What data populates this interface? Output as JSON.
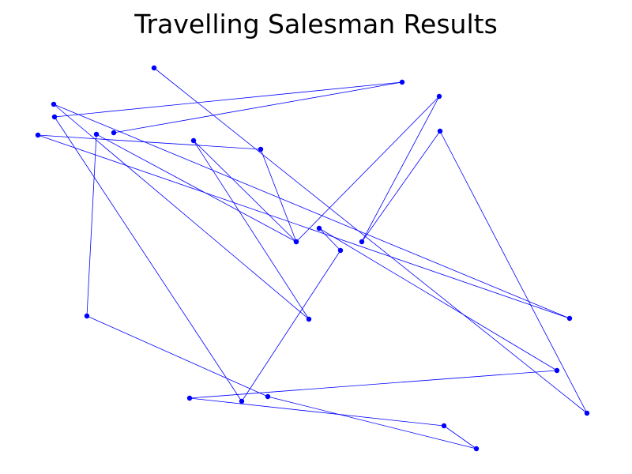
{
  "chart_data": {
    "type": "line",
    "title": "Travelling Salesman Results",
    "xlabel": "",
    "ylabel": "",
    "axes_visible": false,
    "grid": false,
    "legend": "none",
    "marker": "circle",
    "color": "#0000ff",
    "x": [
      195,
      743,
      557,
      458,
      556,
      375,
      245,
      391,
      68,
      721,
      48,
      330,
      375,
      122,
      110,
      339,
      603,
      562,
      240,
      705,
      404,
      431,
      306,
      69,
      509,
      144
    ],
    "y": [
      514,
      77,
      434,
      294,
      478,
      294,
      422,
      196,
      468,
      197,
      429,
      411,
      294,
      430,
      200,
      98,
      32,
      61,
      96,
      131,
      311,
      283,
      92,
      452,
      496,
      432
    ]
  }
}
